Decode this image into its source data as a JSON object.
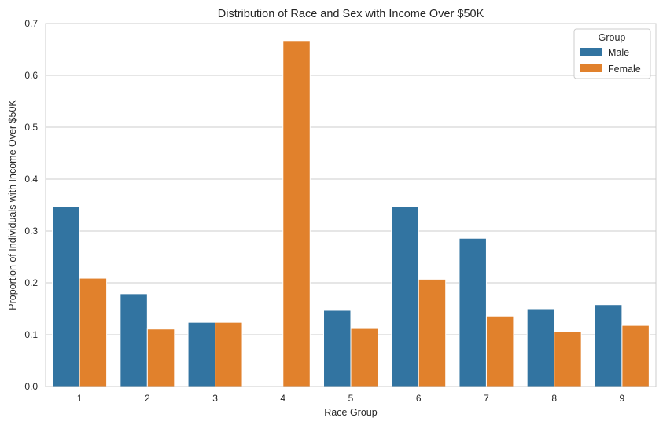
{
  "chart_data": {
    "type": "bar",
    "title": "Distribution of Race and Sex with Income Over $50K",
    "xlabel": "Race Group",
    "ylabel": "Proportion of Individuals with Income Over $50K",
    "categories": [
      "1",
      "2",
      "3",
      "4",
      "5",
      "6",
      "7",
      "8",
      "9"
    ],
    "ylim": [
      0,
      0.7
    ],
    "yticks": [
      "0.0",
      "0.1",
      "0.2",
      "0.3",
      "0.4",
      "0.5",
      "0.6",
      "0.7"
    ],
    "grid": "horizontal",
    "legend": {
      "title": "Group",
      "placement": "top-right"
    },
    "series": [
      {
        "name": "Male",
        "color": "#3274a1",
        "values": [
          0.347,
          0.179,
          0.124,
          null,
          0.147,
          0.347,
          0.286,
          0.15,
          0.158
        ]
      },
      {
        "name": "Female",
        "color": "#e1812c",
        "values": [
          0.209,
          0.111,
          0.124,
          0.667,
          0.112,
          0.207,
          0.136,
          0.106,
          0.118
        ]
      }
    ]
  }
}
